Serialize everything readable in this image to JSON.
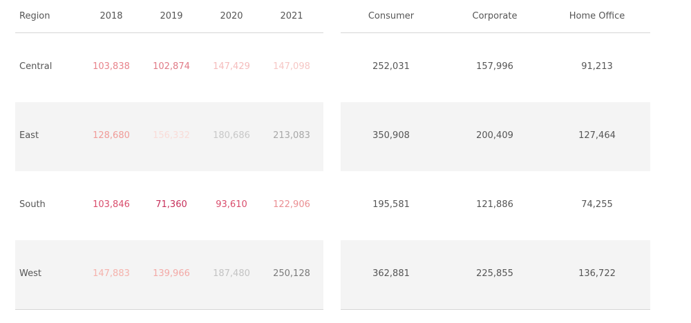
{
  "chart_data": [
    {
      "type": "table",
      "row_header": "Region",
      "columns": [
        "2018",
        "2019",
        "2020",
        "2021"
      ],
      "rows": [
        {
          "label": "Central",
          "values": [
            "103,838",
            "102,874",
            "147,429",
            "147,098"
          ]
        },
        {
          "label": "East",
          "values": [
            "128,680",
            "156,332",
            "180,686",
            "213,083"
          ]
        },
        {
          "label": "South",
          "values": [
            "103,846",
            "71,360",
            "93,610",
            "122,906"
          ]
        },
        {
          "label": "West",
          "values": [
            "147,883",
            "139,966",
            "187,480",
            "250,128"
          ]
        }
      ],
      "cell_colors": [
        [
          "#e8838b",
          "#e07a86",
          "#f5bcbc",
          "#f6c7c5"
        ],
        [
          "#f09b98",
          "#f9dcd8",
          "#c8c8c8",
          "#a7a7a7"
        ],
        [
          "#d94d6c",
          "#c62f5a",
          "#d94d6c",
          "#ea8e92"
        ],
        [
          "#f5b2ac",
          "#f3a9a6",
          "#c3c3c3",
          "#7a7a7a"
        ]
      ]
    },
    {
      "type": "table",
      "columns": [
        "Consumer",
        "Corporate",
        "Home Office"
      ],
      "rows": [
        {
          "label": "Central",
          "values": [
            "252,031",
            "157,996",
            "91,213"
          ]
        },
        {
          "label": "East",
          "values": [
            "350,908",
            "200,409",
            "127,464"
          ]
        },
        {
          "label": "South",
          "values": [
            "195,581",
            "121,886",
            "74,255"
          ]
        },
        {
          "label": "West",
          "values": [
            "362,881",
            "225,855",
            "136,722"
          ]
        }
      ],
      "text_color": "#555555"
    }
  ]
}
